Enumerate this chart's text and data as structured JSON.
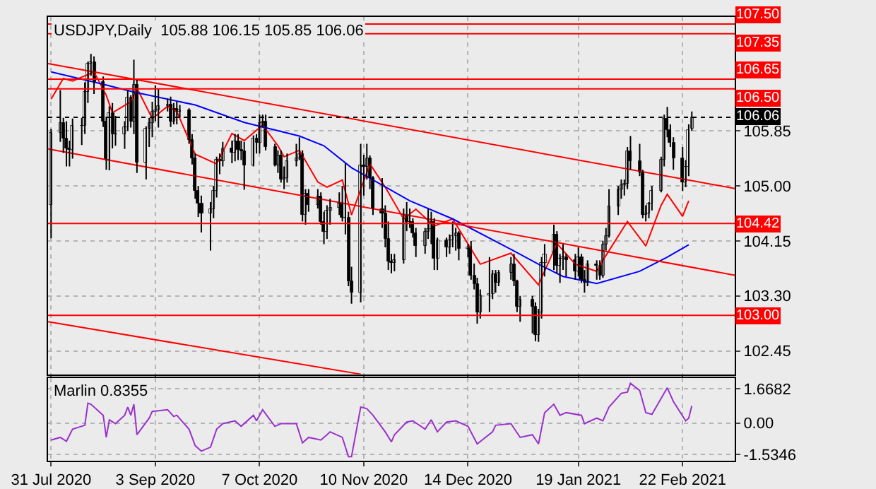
{
  "chart_data": [
    {
      "type": "candlestick",
      "title": "USDJPY,Daily  105.88 106.15 105.85 106.06",
      "x": [
        "2020-07-31",
        "2020-08-03",
        "2020-08-04",
        "2020-08-05",
        "2020-08-06",
        "2020-08-07",
        "2020-08-10",
        "2020-08-11",
        "2020-08-12",
        "2020-08-13",
        "2020-08-14",
        "2020-08-17",
        "2020-08-18",
        "2020-08-19",
        "2020-08-20",
        "2020-08-21",
        "2020-08-24",
        "2020-08-25",
        "2020-08-26",
        "2020-08-27",
        "2020-08-28",
        "2020-08-31",
        "2020-09-01",
        "2020-09-02",
        "2020-09-03",
        "2020-09-04",
        "2020-09-07",
        "2020-09-08",
        "2020-09-09",
        "2020-09-10",
        "2020-09-11",
        "2020-09-14",
        "2020-09-15",
        "2020-09-16",
        "2020-09-17",
        "2020-09-18",
        "2020-09-21",
        "2020-09-22",
        "2020-09-23",
        "2020-09-24",
        "2020-09-25",
        "2020-09-28",
        "2020-09-29",
        "2020-09-30",
        "2020-10-01",
        "2020-10-02",
        "2020-10-05",
        "2020-10-06",
        "2020-10-07",
        "2020-10-08",
        "2020-10-09",
        "2020-10-12",
        "2020-10-13",
        "2020-10-14",
        "2020-10-15",
        "2020-10-16",
        "2020-10-19",
        "2020-10-20",
        "2020-10-21",
        "2020-10-22",
        "2020-10-23",
        "2020-10-26",
        "2020-10-27",
        "2020-10-28",
        "2020-10-29",
        "2020-10-30",
        "2020-11-02",
        "2020-11-03",
        "2020-11-04",
        "2020-11-05",
        "2020-11-06",
        "2020-11-09",
        "2020-11-10",
        "2020-11-11",
        "2020-11-12",
        "2020-11-13",
        "2020-11-16",
        "2020-11-17",
        "2020-11-18",
        "2020-11-19",
        "2020-11-20",
        "2020-11-23",
        "2020-11-24",
        "2020-11-25",
        "2020-11-26",
        "2020-11-27",
        "2020-11-30",
        "2020-12-01",
        "2020-12-02",
        "2020-12-03",
        "2020-12-04",
        "2020-12-07",
        "2020-12-08",
        "2020-12-09",
        "2020-12-10",
        "2020-12-11",
        "2020-12-14",
        "2020-12-15",
        "2020-12-16",
        "2020-12-17",
        "2020-12-18",
        "2020-12-21",
        "2020-12-22",
        "2020-12-23",
        "2020-12-24",
        "2020-12-28",
        "2020-12-29",
        "2020-12-30",
        "2020-12-31",
        "2021-01-04",
        "2021-01-05",
        "2021-01-06",
        "2021-01-07",
        "2021-01-08",
        "2021-01-11",
        "2021-01-12",
        "2021-01-13",
        "2021-01-14",
        "2021-01-15",
        "2021-01-18",
        "2021-01-19",
        "2021-01-20",
        "2021-01-21",
        "2021-01-22",
        "2021-01-25",
        "2021-01-26",
        "2021-01-27",
        "2021-01-28",
        "2021-01-29",
        "2021-02-01",
        "2021-02-02",
        "2021-02-03",
        "2021-02-04",
        "2021-02-05",
        "2021-02-08",
        "2021-02-09",
        "2021-02-10",
        "2021-02-11",
        "2021-02-12",
        "2021-02-15",
        "2021-02-16",
        "2021-02-17",
        "2021-02-18",
        "2021-02-19",
        "2021-02-22",
        "2021-02-23",
        "2021-02-24",
        "2021-02-25"
      ],
      "ohlc": [
        [
          104.7,
          105.88,
          104.19,
          105.83
        ],
        [
          105.83,
          106.48,
          105.68,
          105.98
        ],
        [
          105.98,
          106.05,
          105.51,
          105.73
        ],
        [
          105.73,
          106.0,
          105.3,
          105.57
        ],
        [
          105.57,
          105.7,
          105.3,
          105.55
        ],
        [
          105.55,
          106.04,
          105.42,
          105.92
        ],
        [
          105.92,
          106.05,
          105.63,
          105.93
        ],
        [
          105.93,
          106.6,
          105.8,
          106.46
        ],
        [
          106.46,
          106.92,
          106.28,
          106.89
        ],
        [
          106.89,
          107.04,
          106.7,
          106.91
        ],
        [
          106.91,
          107.0,
          106.42,
          106.6
        ],
        [
          106.6,
          106.69,
          105.91,
          105.99
        ],
        [
          105.99,
          106.07,
          105.25,
          105.41
        ],
        [
          105.41,
          106.23,
          105.24,
          106.13
        ],
        [
          106.13,
          106.28,
          105.58,
          105.79
        ],
        [
          105.79,
          106.08,
          105.62,
          105.8
        ],
        [
          105.8,
          106.0,
          105.57,
          105.9
        ],
        [
          105.9,
          106.48,
          105.85,
          106.37
        ],
        [
          106.37,
          106.4,
          105.9,
          106.0
        ],
        [
          106.0,
          106.95,
          105.8,
          106.57
        ],
        [
          106.57,
          106.65,
          105.2,
          105.36
        ],
        [
          105.36,
          105.92,
          105.1,
          105.89
        ],
        [
          105.89,
          106.05,
          105.6,
          105.97
        ],
        [
          105.97,
          106.3,
          105.75,
          106.15
        ],
        [
          106.15,
          106.55,
          106.0,
          106.17
        ],
        [
          106.17,
          106.5,
          105.9,
          106.24
        ],
        [
          106.24,
          106.35,
          106.15,
          106.26
        ],
        [
          106.26,
          106.38,
          105.91,
          106.0
        ],
        [
          106.0,
          106.28,
          105.95,
          106.18
        ],
        [
          106.18,
          106.3,
          105.95,
          106.14
        ],
        [
          106.14,
          106.25,
          106.05,
          106.16
        ],
        [
          106.16,
          106.2,
          105.65,
          105.7
        ],
        [
          105.7,
          105.8,
          105.33,
          105.42
        ],
        [
          105.42,
          105.5,
          104.8,
          104.93
        ],
        [
          104.93,
          105.0,
          104.52,
          104.72
        ],
        [
          104.72,
          104.85,
          104.28,
          104.58
        ],
        [
          104.58,
          104.75,
          104.0,
          104.64
        ],
        [
          104.64,
          105.0,
          104.5,
          104.93
        ],
        [
          104.93,
          105.45,
          104.82,
          105.4
        ],
        [
          105.4,
          105.5,
          105.18,
          105.38
        ],
        [
          105.38,
          105.68,
          105.3,
          105.58
        ],
        [
          105.58,
          105.7,
          105.35,
          105.51
        ],
        [
          105.51,
          105.8,
          105.38,
          105.68
        ],
        [
          105.68,
          105.8,
          105.4,
          105.56
        ],
        [
          105.56,
          105.7,
          105.4,
          105.53
        ],
        [
          105.53,
          105.68,
          104.94,
          105.32
        ],
        [
          105.32,
          105.78,
          105.3,
          105.74
        ],
        [
          105.74,
          105.8,
          105.5,
          105.67
        ],
        [
          105.67,
          106.1,
          105.5,
          105.98
        ],
        [
          105.98,
          106.1,
          105.9,
          106.0
        ],
        [
          106.0,
          106.1,
          105.55,
          105.61
        ],
        [
          105.61,
          105.65,
          105.3,
          105.31
        ],
        [
          105.31,
          105.55,
          105.2,
          105.47
        ],
        [
          105.47,
          105.55,
          105.05,
          105.1
        ],
        [
          105.1,
          105.3,
          104.95,
          105.12
        ],
        [
          105.12,
          105.5,
          105.05,
          105.39
        ],
        [
          105.39,
          105.65,
          105.3,
          105.43
        ],
        [
          105.43,
          105.75,
          105.4,
          105.5
        ],
        [
          105.5,
          105.55,
          104.45,
          104.56
        ],
        [
          104.56,
          104.95,
          104.4,
          104.87
        ],
        [
          104.87,
          104.95,
          104.6,
          104.71
        ],
        [
          104.71,
          104.95,
          104.65,
          104.83
        ],
        [
          104.83,
          104.9,
          104.4,
          104.44
        ],
        [
          104.44,
          104.6,
          104.1,
          104.29
        ],
        [
          104.29,
          104.7,
          104.18,
          104.62
        ],
        [
          104.62,
          104.8,
          104.4,
          104.66
        ],
        [
          104.66,
          104.9,
          104.55,
          104.73
        ],
        [
          104.73,
          105.0,
          104.45,
          104.52
        ],
        [
          104.52,
          105.35,
          104.25,
          104.52
        ],
        [
          104.52,
          104.6,
          103.45,
          103.52
        ],
        [
          103.52,
          103.75,
          103.18,
          103.36
        ],
        [
          103.36,
          105.65,
          103.2,
          105.31
        ],
        [
          105.31,
          105.48,
          104.85,
          105.3
        ],
        [
          105.3,
          105.65,
          105.1,
          105.42
        ],
        [
          105.42,
          105.47,
          104.95,
          105.13
        ],
        [
          105.13,
          105.15,
          104.55,
          104.63
        ],
        [
          104.63,
          105.12,
          104.35,
          104.58
        ],
        [
          104.58,
          104.7,
          104.05,
          104.19
        ],
        [
          104.19,
          104.45,
          103.7,
          103.83
        ],
        [
          103.83,
          103.95,
          103.65,
          103.8
        ],
        [
          103.8,
          103.95,
          103.68,
          103.86
        ],
        [
          103.86,
          104.65,
          103.8,
          104.54
        ],
        [
          104.54,
          104.75,
          104.3,
          104.45
        ],
        [
          104.45,
          104.65,
          104.35,
          104.45
        ],
        [
          104.45,
          104.5,
          104.2,
          104.26
        ],
        [
          104.26,
          104.35,
          103.9,
          104.08
        ],
        [
          104.08,
          104.35,
          103.95,
          104.3
        ],
        [
          104.3,
          104.65,
          104.18,
          104.33
        ],
        [
          104.33,
          104.6,
          104.1,
          104.45
        ],
        [
          104.45,
          104.5,
          103.7,
          103.87
        ],
        [
          103.87,
          104.2,
          103.7,
          104.16
        ],
        [
          104.16,
          104.2,
          103.9,
          104.05
        ],
        [
          104.05,
          104.25,
          103.95,
          104.16
        ],
        [
          104.16,
          104.45,
          104.05,
          104.22
        ],
        [
          104.22,
          104.35,
          104.0,
          104.26
        ],
        [
          104.26,
          104.3,
          103.85,
          104.03
        ],
        [
          104.03,
          104.1,
          103.9,
          104.06
        ],
        [
          104.06,
          104.15,
          103.55,
          103.61
        ],
        [
          103.61,
          103.8,
          103.4,
          103.48
        ],
        [
          103.48,
          103.58,
          102.87,
          103.05
        ],
        [
          103.05,
          103.4,
          102.95,
          103.31
        ],
        [
          103.31,
          103.9,
          103.05,
          103.34
        ],
        [
          103.34,
          103.7,
          103.25,
          103.63
        ],
        [
          103.63,
          103.7,
          103.35,
          103.51
        ],
        [
          103.51,
          103.7,
          103.45,
          103.65
        ],
        [
          103.65,
          103.9,
          103.55,
          103.79
        ],
        [
          103.79,
          103.95,
          103.45,
          103.53
        ],
        [
          103.53,
          103.55,
          103.05,
          103.13
        ],
        [
          103.13,
          103.3,
          102.9,
          103.24
        ],
        [
          103.24,
          103.3,
          102.72,
          103.13
        ],
        [
          103.13,
          103.2,
          102.6,
          102.7
        ],
        [
          102.7,
          103.1,
          102.59,
          103.05
        ],
        [
          103.05,
          103.9,
          102.95,
          103.81
        ],
        [
          103.81,
          104.1,
          103.6,
          103.94
        ],
        [
          103.94,
          104.4,
          103.7,
          104.25
        ],
        [
          104.25,
          104.3,
          103.65,
          103.76
        ],
        [
          103.76,
          103.95,
          103.5,
          103.87
        ],
        [
          103.87,
          104.1,
          103.7,
          103.89
        ],
        [
          103.89,
          103.95,
          103.6,
          103.86
        ],
        [
          103.86,
          103.95,
          103.55,
          103.68
        ],
        [
          103.68,
          104.05,
          103.6,
          103.89
        ],
        [
          103.89,
          103.95,
          103.5,
          103.55
        ],
        [
          103.55,
          103.7,
          103.35,
          103.5
        ],
        [
          103.5,
          103.85,
          103.45,
          103.78
        ],
        [
          103.78,
          103.85,
          103.55,
          103.77
        ],
        [
          103.77,
          103.85,
          103.55,
          103.61
        ],
        [
          103.61,
          104.15,
          103.58,
          104.09
        ],
        [
          104.09,
          104.35,
          104.0,
          104.23
        ],
        [
          104.23,
          104.95,
          104.2,
          104.68
        ],
        [
          104.68,
          105.0,
          104.55,
          104.94
        ],
        [
          104.94,
          105.1,
          104.8,
          105.01
        ],
        [
          105.01,
          105.1,
          104.85,
          105.03
        ],
        [
          105.03,
          105.6,
          104.95,
          105.53
        ],
        [
          105.53,
          105.77,
          105.25,
          105.39
        ],
        [
          105.39,
          105.65,
          105.15,
          105.21
        ],
        [
          105.21,
          105.25,
          104.5,
          104.56
        ],
        [
          104.56,
          104.7,
          104.45,
          104.58
        ],
        [
          104.58,
          104.75,
          104.5,
          104.73
        ],
        [
          104.73,
          105.0,
          104.62,
          104.93
        ],
        [
          104.93,
          105.45,
          104.9,
          105.4
        ],
        [
          105.4,
          106.1,
          105.3,
          106.03
        ],
        [
          106.03,
          106.22,
          105.75,
          105.86
        ],
        [
          105.86,
          105.95,
          105.6,
          105.67
        ],
        [
          105.67,
          105.75,
          105.25,
          105.43
        ],
        [
          105.43,
          105.6,
          104.92,
          105.06
        ],
        [
          105.06,
          105.4,
          104.98,
          105.29
        ],
        [
          105.29,
          105.95,
          105.15,
          105.87
        ],
        [
          105.88,
          106.15,
          105.85,
          106.06
        ]
      ],
      "series": [
        {
          "type": "line",
          "color": "#ff0000",
          "x": [
            "2020-07-31",
            "2020-08-04",
            "2020-08-07",
            "2020-08-14",
            "2020-08-18",
            "2020-08-20",
            "2020-08-26",
            "2020-08-28",
            "2020-09-02",
            "2020-09-07",
            "2020-09-10",
            "2020-09-16",
            "2020-09-23",
            "2020-09-28",
            "2020-10-02",
            "2020-10-08",
            "2020-10-13",
            "2020-10-15",
            "2020-10-20",
            "2020-10-26",
            "2020-10-29",
            "2020-11-03",
            "2020-11-06",
            "2020-11-12",
            "2020-11-17",
            "2020-11-23",
            "2020-11-27",
            "2020-12-03",
            "2020-12-09",
            "2020-12-18",
            "2020-12-28",
            "2021-01-06",
            "2021-01-12",
            "2021-01-18",
            "2021-01-25",
            "2021-01-27",
            "2021-02-04",
            "2021-02-10",
            "2021-02-15",
            "2021-02-17",
            "2021-02-22",
            "2021-02-24"
          ],
          "values": [
            106.34,
            106.66,
            106.62,
            106.76,
            106.4,
            106.13,
            106.3,
            106.51,
            106.04,
            106.23,
            106.15,
            105.49,
            105.34,
            105.81,
            105.7,
            105.94,
            105.62,
            105.45,
            105.55,
            105.06,
            104.98,
            105.09,
            104.55,
            105.34,
            104.98,
            104.49,
            104.64,
            104.38,
            104.49,
            103.79,
            103.96,
            103.47,
            104.11,
            103.79,
            103.68,
            103.85,
            104.45,
            104.07,
            104.7,
            104.87,
            104.53,
            104.77
          ]
        },
        {
          "type": "line",
          "color": "#0000ff",
          "x": [
            "2020-07-31",
            "2020-08-17",
            "2020-08-27",
            "2020-09-16",
            "2020-10-02",
            "2020-10-20",
            "2020-10-28",
            "2020-11-06",
            "2020-11-25",
            "2020-12-09",
            "2020-12-28",
            "2021-01-06",
            "2021-01-14",
            "2021-01-25",
            "2021-02-08",
            "2021-02-17",
            "2021-02-24"
          ],
          "values": [
            106.76,
            106.57,
            106.45,
            106.25,
            105.98,
            105.77,
            105.62,
            105.28,
            104.77,
            104.49,
            104.02,
            103.79,
            103.6,
            103.49,
            103.68,
            103.9,
            104.09
          ]
        },
        {
          "type": "line",
          "color": "#ff0000",
          "x": [
            "2020-07-30",
            "2021-03-11"
          ],
          "values": [
            106.89,
            104.96
          ]
        },
        {
          "type": "line",
          "color": "#ff0000",
          "x": [
            "2020-07-30",
            "2021-03-11"
          ],
          "values": [
            105.57,
            103.62
          ]
        },
        {
          "type": "line",
          "color": "#ff0000",
          "x": [
            "2020-07-30",
            "2020-11-09"
          ],
          "values": [
            102.9,
            102.09
          ]
        }
      ],
      "ref_lines": [
        {
          "axis": "y",
          "value": 107.5,
          "label": "107.50",
          "color": "#ff0000"
        },
        {
          "axis": "y",
          "value": 107.35,
          "label": "107.35",
          "color": "#ff0000"
        },
        {
          "axis": "y",
          "value": 106.65,
          "label": "106.65",
          "color": "#ff0000"
        },
        {
          "axis": "y",
          "value": 106.5,
          "label": "106.50",
          "color": "#ff0000"
        },
        {
          "axis": "y",
          "value": 106.06,
          "label": "106.06",
          "color": "#000000",
          "line_style": "dotted"
        },
        {
          "axis": "y",
          "value": 104.42,
          "label": "104.42",
          "color": "#ff0000"
        },
        {
          "axis": "y",
          "value": 103.0,
          "label": "103.00",
          "color": "#ff0000"
        }
      ],
      "xlim": [
        "2020-07-30",
        "2021-03-11"
      ],
      "xticks": [
        {
          "value": "2020-07-31",
          "label": null
        },
        {
          "value": "2020-09-03",
          "label": null
        },
        {
          "value": "2020-10-07",
          "label": null
        },
        {
          "value": "2020-11-10",
          "label": null
        },
        {
          "value": "2020-12-14",
          "label": null
        },
        {
          "value": "2021-01-19",
          "label": null
        },
        {
          "value": "2021-02-22",
          "label": null
        }
      ],
      "ylim": [
        102.09,
        107.61
      ],
      "yticks": [
        105.85,
        {
          "value": 105,
          "label": "105.00"
        },
        104.15,
        {
          "value": 103.3,
          "label": "103.30"
        },
        102.45
      ],
      "grid": true,
      "tick_labels": "y"
    },
    {
      "type": "line",
      "title": "Marlin 0.8355",
      "series": [
        {
          "color": "#9932cc",
          "x": [
            "2020-07-31",
            "2020-08-03",
            "2020-08-05",
            "2020-08-07",
            "2020-08-11",
            "2020-08-12",
            "2020-08-13",
            "2020-08-17",
            "2020-08-18",
            "2020-08-19",
            "2020-08-21",
            "2020-08-24",
            "2020-08-25",
            "2020-08-26",
            "2020-08-27",
            "2020-08-28",
            "2020-09-01",
            "2020-09-02",
            "2020-09-07",
            "2020-09-09",
            "2020-09-10",
            "2020-09-14",
            "2020-09-16",
            "2020-09-18",
            "2020-09-21",
            "2020-09-23",
            "2020-09-25",
            "2020-09-29",
            "2020-10-01",
            "2020-10-05",
            "2020-10-06",
            "2020-10-08",
            "2020-10-12",
            "2020-10-14",
            "2020-10-19",
            "2020-10-21",
            "2020-10-23",
            "2020-10-27",
            "2020-10-29",
            "2020-10-30",
            "2020-11-03",
            "2020-11-05",
            "2020-11-06",
            "2020-11-09",
            "2020-11-11",
            "2020-11-13",
            "2020-11-17",
            "2020-11-19",
            "2020-11-20",
            "2020-11-24",
            "2020-11-26",
            "2020-11-30",
            "2020-12-02",
            "2020-12-04",
            "2020-12-07",
            "2020-12-10",
            "2020-12-14",
            "2020-12-17",
            "2020-12-22",
            "2020-12-23",
            "2020-12-28",
            "2020-12-31",
            "2021-01-04",
            "2021-01-06",
            "2021-01-08",
            "2021-01-11",
            "2021-01-13",
            "2021-01-15",
            "2021-01-20",
            "2021-01-21",
            "2021-01-25",
            "2021-01-27",
            "2021-01-29",
            "2021-02-02",
            "2021-02-04",
            "2021-02-05",
            "2021-02-08",
            "2021-02-10",
            "2021-02-12",
            "2021-02-17",
            "2021-02-19",
            "2021-02-23",
            "2021-02-24",
            "2021-02-25"
          ],
          "values": [
            -0.83,
            -0.7,
            -0.89,
            -0.3,
            -0.11,
            0.97,
            0.92,
            0.38,
            -0.7,
            0.16,
            -0.03,
            0.38,
            0.78,
            0.38,
            0.92,
            -0.57,
            0.24,
            0.57,
            0.65,
            0.32,
            0.38,
            -0.3,
            -1.1,
            -1.37,
            -1.18,
            -0.3,
            -0.03,
            0.11,
            -0.16,
            0.38,
            0.11,
            0.65,
            -0.16,
            -0.03,
            -0.03,
            -0.97,
            -0.7,
            -0.83,
            -0.57,
            -0.43,
            -0.7,
            -1.64,
            -1.64,
            0.78,
            0.7,
            0.38,
            -0.43,
            -0.92,
            -0.57,
            0.05,
            0.11,
            -0.3,
            0.16,
            -0.43,
            0.05,
            0.11,
            -0.16,
            -1.02,
            -0.43,
            -0.11,
            -0.03,
            -0.7,
            -0.57,
            -1.02,
            0.51,
            0.92,
            0.38,
            0.51,
            0.38,
            -0.03,
            0.24,
            0.11,
            0.78,
            1.45,
            1.51,
            1.94,
            1.59,
            0.51,
            0.43,
            1.72,
            1.05,
            0.11,
            0.24,
            0.84
          ]
        }
      ],
      "xlim": [
        "2020-07-30",
        "2021-03-11"
      ],
      "xticks": [
        {
          "value": "2020-07-31",
          "label": "31 Jul 2020"
        },
        {
          "value": "2020-09-03",
          "label": "3 Sep 2020"
        },
        {
          "value": "2020-10-07",
          "label": "7 Oct 2020"
        },
        {
          "value": "2020-11-10",
          "label": "10 Nov 2020"
        },
        {
          "value": "2020-12-14",
          "label": "14 Dec 2020"
        },
        {
          "value": "2021-01-19",
          "label": "19 Jan 2021"
        },
        {
          "value": "2021-02-22",
          "label": "22 Feb 2021"
        }
      ],
      "ylim": [
        -1.84,
        2.19
      ],
      "yticks": [
        1.6682,
        {
          "value": 0,
          "label": "0.00"
        },
        -1.5346
      ],
      "grid": true
    }
  ]
}
